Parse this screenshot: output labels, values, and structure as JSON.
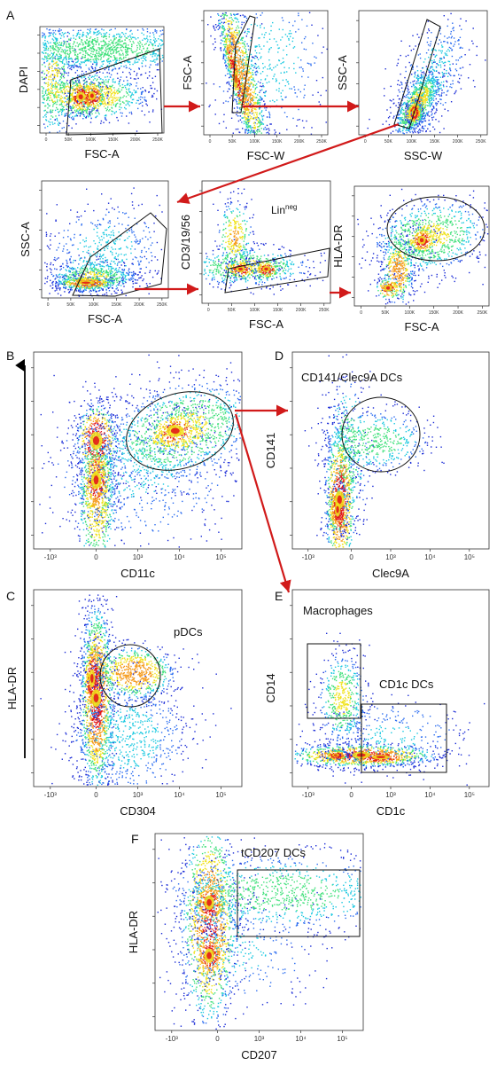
{
  "panels": {
    "A": {
      "label": "A"
    },
    "B": {
      "label": "B"
    },
    "C": {
      "label": "C"
    },
    "D": {
      "label": "D"
    },
    "E": {
      "label": "E"
    },
    "F": {
      "label": "F"
    }
  },
  "plots": {
    "a1": {
      "xlabel": "FSC-A",
      "ylabel": "DAPI",
      "xticks": [
        "0",
        "50K",
        "100K",
        "150K",
        "200K",
        "250K"
      ]
    },
    "a2": {
      "xlabel": "FSC-W",
      "ylabel": "FSC-A",
      "xticks": [
        "0",
        "50K",
        "100K",
        "150K",
        "200K",
        "250K"
      ]
    },
    "a3": {
      "xlabel": "SSC-W",
      "ylabel": "SSC-A",
      "xticks": [
        "0",
        "50K",
        "100K",
        "150K",
        "200K",
        "250K"
      ]
    },
    "a4": {
      "xlabel": "FSC-A",
      "ylabel": "SSC-A",
      "xticks": [
        "0",
        "50K",
        "100K",
        "150K",
        "200K",
        "250K"
      ]
    },
    "a5": {
      "xlabel": "FSC-A",
      "ylabel": "CD3/19/56",
      "xticks": [
        "0",
        "50K",
        "100K",
        "150K",
        "200K",
        "250K"
      ],
      "gate_label": "Lin",
      "gate_label_sup": "neg"
    },
    "a6": {
      "xlabel": "FSC-A",
      "ylabel": "HLA-DR",
      "xticks": [
        "0",
        "50K",
        "100K",
        "150K",
        "200K",
        "250K"
      ]
    },
    "b": {
      "xlabel": "CD11c",
      "ylabel": "",
      "xticks": [
        "-10³",
        "0",
        "10³",
        "10⁴",
        "10⁵"
      ]
    },
    "c": {
      "xlabel": "CD304",
      "ylabel": "HLA-DR",
      "xticks": [
        "-10³",
        "0",
        "10³",
        "10⁴",
        "10⁵"
      ],
      "gate_label": "pDCs"
    },
    "d": {
      "xlabel": "Clec9A",
      "ylabel": "CD141",
      "xticks": [
        "-10³",
        "0",
        "10³",
        "10⁴",
        "10⁵"
      ],
      "title": "CD141/Clec9A DCs"
    },
    "e": {
      "xlabel": "CD1c",
      "ylabel": "CD14",
      "xticks": [
        "-10³",
        "0",
        "10³",
        "10⁴",
        "10⁵"
      ],
      "title": "Macrophages",
      "gate_label": "CD1c DCs"
    },
    "f": {
      "xlabel": "CD207",
      "ylabel": "HLA-DR",
      "xticks": [
        "-10³",
        "0",
        "10³",
        "10⁴",
        "10⁵"
      ],
      "title": "tCD207 DCs"
    }
  },
  "colors": {
    "arrow": "#d11a1a",
    "density_low": "#1a2bd6",
    "density_mid": "#19c8e0",
    "density_high": "#f0e21a",
    "density_peak": "#e21a1a"
  }
}
